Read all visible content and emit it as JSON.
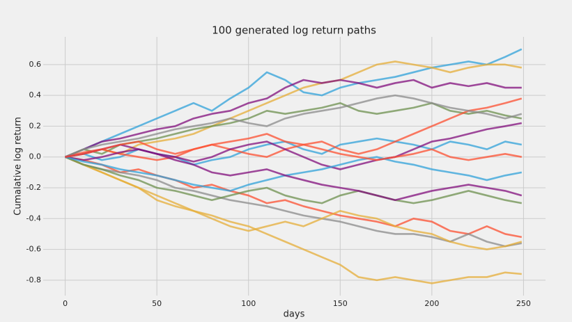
{
  "chart_data": {
    "type": "line",
    "title": "100 generated log return paths",
    "xlabel": "days",
    "ylabel": "Cumalative log return",
    "x": [
      0,
      10,
      20,
      30,
      40,
      50,
      60,
      70,
      80,
      90,
      100,
      110,
      120,
      130,
      140,
      150,
      160,
      170,
      180,
      190,
      200,
      210,
      220,
      230,
      240,
      249
    ],
    "xlim": [
      -12,
      262
    ],
    "ylim": [
      -0.9,
      0.78
    ],
    "xticks": [
      0,
      50,
      100,
      150,
      200,
      250
    ],
    "yticks": [
      -0.8,
      -0.6,
      -0.4,
      -0.2,
      {
        "value": 0,
        "label": "0.0"
      },
      0.2,
      0.4,
      0.6
    ],
    "grid": true,
    "series": [
      {
        "color": "#30a2da",
        "values": [
          0,
          0.05,
          0.1,
          0.15,
          0.2,
          0.25,
          0.3,
          0.35,
          0.3,
          0.38,
          0.45,
          0.55,
          0.5,
          0.42,
          0.4,
          0.45,
          0.48,
          0.5,
          0.52,
          0.55,
          0.58,
          0.6,
          0.62,
          0.6,
          0.65,
          0.7
        ]
      },
      {
        "color": "#e5ae38",
        "values": [
          0,
          -0.05,
          -0.1,
          -0.15,
          -0.2,
          -0.25,
          -0.3,
          -0.35,
          -0.38,
          -0.42,
          -0.45,
          -0.5,
          -0.55,
          -0.6,
          -0.65,
          -0.7,
          -0.78,
          -0.8,
          -0.78,
          -0.8,
          -0.82,
          -0.8,
          -0.78,
          -0.78,
          -0.75,
          -0.76
        ]
      },
      {
        "color": "#e5ae38",
        "values": [
          0,
          0.02,
          0.05,
          0.02,
          0.08,
          0.1,
          0.12,
          0.15,
          0.2,
          0.25,
          0.3,
          0.35,
          0.4,
          0.45,
          0.48,
          0.5,
          0.55,
          0.6,
          0.62,
          0.6,
          0.58,
          0.55,
          0.58,
          0.6,
          0.6,
          0.58
        ]
      },
      {
        "color": "#810f7c",
        "values": [
          0,
          0.05,
          0.1,
          0.12,
          0.15,
          0.18,
          0.2,
          0.25,
          0.28,
          0.3,
          0.35,
          0.38,
          0.45,
          0.5,
          0.48,
          0.5,
          0.48,
          0.45,
          0.48,
          0.5,
          0.45,
          0.48,
          0.46,
          0.48,
          0.45,
          0.45
        ]
      },
      {
        "color": "#fc4f30",
        "values": [
          0,
          -0.02,
          -0.05,
          -0.1,
          -0.08,
          -0.12,
          -0.15,
          -0.2,
          -0.18,
          -0.22,
          -0.25,
          -0.3,
          -0.28,
          -0.32,
          -0.35,
          -0.38,
          -0.4,
          -0.42,
          -0.45,
          -0.4,
          -0.42,
          -0.48,
          -0.5,
          -0.45,
          -0.5,
          -0.52
        ]
      },
      {
        "color": "#6d904f",
        "values": [
          0,
          0.05,
          0.02,
          0.08,
          0.1,
          0.12,
          0.15,
          0.18,
          0.2,
          0.22,
          0.25,
          0.3,
          0.28,
          0.3,
          0.32,
          0.35,
          0.3,
          0.28,
          0.3,
          0.32,
          0.35,
          0.3,
          0.28,
          0.3,
          0.27,
          0.25
        ]
      },
      {
        "color": "#8b8b8b",
        "values": [
          0,
          -0.05,
          -0.08,
          -0.1,
          -0.12,
          -0.15,
          -0.2,
          -0.22,
          -0.25,
          -0.28,
          -0.3,
          -0.32,
          -0.35,
          -0.38,
          -0.4,
          -0.42,
          -0.45,
          -0.48,
          -0.5,
          -0.5,
          -0.52,
          -0.55,
          -0.5,
          -0.55,
          -0.58,
          -0.56
        ]
      },
      {
        "color": "#30a2da",
        "values": [
          0,
          0.02,
          -0.02,
          0,
          0.05,
          0.02,
          0,
          -0.05,
          -0.02,
          0,
          0.05,
          0.08,
          0.1,
          0.05,
          0.02,
          0.08,
          0.1,
          0.12,
          0.1,
          0.08,
          0.05,
          0.1,
          0.08,
          0.05,
          0.1,
          0.08
        ]
      },
      {
        "color": "#e5ae38",
        "values": [
          0,
          -0.05,
          -0.1,
          -0.15,
          -0.2,
          -0.28,
          -0.32,
          -0.35,
          -0.4,
          -0.45,
          -0.48,
          -0.45,
          -0.42,
          -0.45,
          -0.4,
          -0.35,
          -0.38,
          -0.4,
          -0.45,
          -0.48,
          -0.5,
          -0.55,
          -0.58,
          -0.6,
          -0.58,
          -0.55
        ]
      },
      {
        "color": "#fc4f30",
        "values": [
          0,
          0.03,
          0.05,
          0.02,
          0,
          -0.02,
          0,
          0.05,
          0.08,
          0.05,
          0.02,
          0,
          0.05,
          0.08,
          0.1,
          0.05,
          0.02,
          0.05,
          0.1,
          0.15,
          0.2,
          0.25,
          0.3,
          0.32,
          0.35,
          0.38
        ]
      },
      {
        "color": "#810f7c",
        "values": [
          0,
          -0.02,
          0,
          0.03,
          0.05,
          0.02,
          0,
          -0.03,
          0,
          0.05,
          0.08,
          0.1,
          0.05,
          0,
          -0.05,
          -0.08,
          -0.05,
          -0.02,
          0,
          0.05,
          0.1,
          0.12,
          0.15,
          0.18,
          0.2,
          0.22
        ]
      },
      {
        "color": "#6d904f",
        "values": [
          0,
          -0.05,
          -0.08,
          -0.12,
          -0.15,
          -0.2,
          -0.22,
          -0.25,
          -0.28,
          -0.25,
          -0.22,
          -0.2,
          -0.25,
          -0.28,
          -0.3,
          -0.25,
          -0.22,
          -0.25,
          -0.28,
          -0.3,
          -0.28,
          -0.25,
          -0.22,
          -0.25,
          -0.28,
          -0.3
        ]
      },
      {
        "color": "#30a2da",
        "values": [
          0,
          -0.03,
          -0.05,
          -0.08,
          -0.1,
          -0.12,
          -0.15,
          -0.18,
          -0.2,
          -0.22,
          -0.18,
          -0.15,
          -0.12,
          -0.1,
          -0.08,
          -0.05,
          -0.02,
          0,
          -0.03,
          -0.05,
          -0.08,
          -0.1,
          -0.12,
          -0.15,
          -0.12,
          -0.1
        ]
      },
      {
        "color": "#8b8b8b",
        "values": [
          0,
          0.05,
          0.08,
          0.1,
          0.12,
          0.15,
          0.18,
          0.2,
          0.22,
          0.25,
          0.22,
          0.2,
          0.25,
          0.28,
          0.3,
          0.32,
          0.35,
          0.38,
          0.4,
          0.38,
          0.35,
          0.32,
          0.3,
          0.28,
          0.25,
          0.28
        ]
      },
      {
        "color": "#810f7c",
        "values": [
          0,
          0.02,
          0.05,
          0.08,
          0.05,
          0.02,
          -0.02,
          -0.05,
          -0.1,
          -0.12,
          -0.1,
          -0.08,
          -0.12,
          -0.15,
          -0.18,
          -0.2,
          -0.22,
          -0.25,
          -0.28,
          -0.25,
          -0.22,
          -0.2,
          -0.18,
          -0.2,
          -0.22,
          -0.25
        ]
      },
      {
        "color": "#fc4f30",
        "values": [
          0,
          0.02,
          0.05,
          0.08,
          0.1,
          0.05,
          0.02,
          0.05,
          0.08,
          0.1,
          0.12,
          0.15,
          0.1,
          0.08,
          0.05,
          0.02,
          0,
          -0.02,
          0,
          0.02,
          0.05,
          0,
          -0.02,
          0,
          0.02,
          0
        ]
      }
    ]
  }
}
